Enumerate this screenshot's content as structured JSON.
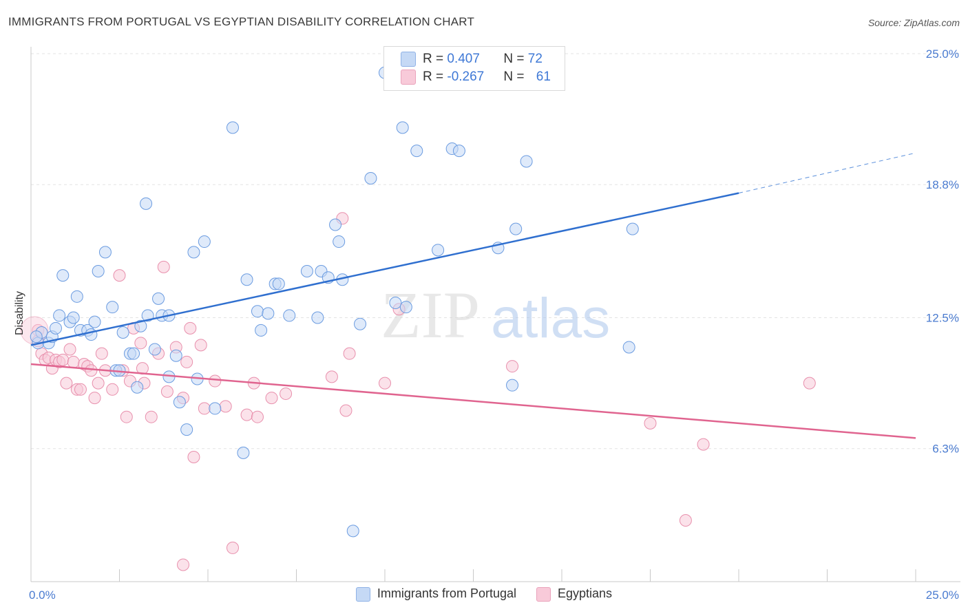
{
  "title": "IMMIGRANTS FROM PORTUGAL VS EGYPTIAN DISABILITY CORRELATION CHART",
  "source": "Source: ZipAtlas.com",
  "watermark": {
    "zip": "ZIP",
    "atlas": "atlas"
  },
  "legend_top": {
    "rows": [
      {
        "r_label": "R = ",
        "r_value": "0.407",
        "n_label": "N = ",
        "n_value": "72",
        "color": "#a8c6f0"
      },
      {
        "r_label": "R = ",
        "r_value": "-0.267",
        "n_label": "N = ",
        "n_value": "61",
        "color": "#f5b8cc"
      }
    ]
  },
  "legend_bottom": [
    {
      "label": "Immigrants from Portugal",
      "color": "#a8c6f0"
    },
    {
      "label": "Egyptians",
      "color": "#f5b8cc"
    }
  ],
  "chart_data": {
    "type": "scatter",
    "title": "IMMIGRANTS FROM PORTUGAL VS EGYPTIAN DISABILITY CORRELATION CHART",
    "xlabel": "",
    "ylabel": "Disability",
    "xlim": [
      0,
      25
    ],
    "ylim": [
      0,
      25
    ],
    "x_tick_labels": [
      "0.0%",
      "25.0%"
    ],
    "y_ticks": [
      6.3,
      12.5,
      18.8,
      25.0
    ],
    "y_tick_labels": [
      "6.3%",
      "12.5%",
      "18.8%",
      "25.0%"
    ],
    "grid": true,
    "legend_position": "top-center",
    "series": [
      {
        "name": "Immigrants from Portugal",
        "color": "#6a9be0",
        "fill": "#c5d9f5",
        "trend": {
          "x0": 0,
          "y0": 11.2,
          "x1": 20,
          "y1": 18.4,
          "dash_to_x": 25,
          "dash_to_y": 20.3
        },
        "points": [
          [
            0.2,
            11.3
          ],
          [
            0.3,
            11.8
          ],
          [
            0.5,
            11.3
          ],
          [
            0.6,
            11.6
          ],
          [
            0.7,
            12.0
          ],
          [
            0.8,
            12.6
          ],
          [
            0.9,
            14.5
          ],
          [
            1.1,
            12.3
          ],
          [
            1.2,
            12.5
          ],
          [
            1.3,
            13.5
          ],
          [
            1.4,
            11.9
          ],
          [
            1.6,
            11.9
          ],
          [
            1.7,
            11.7
          ],
          [
            1.8,
            12.3
          ],
          [
            1.9,
            14.7
          ],
          [
            2.1,
            15.6
          ],
          [
            2.3,
            13.0
          ],
          [
            2.4,
            10.0
          ],
          [
            2.5,
            10.0
          ],
          [
            2.6,
            11.8
          ],
          [
            2.8,
            10.8
          ],
          [
            2.9,
            10.8
          ],
          [
            3.0,
            9.2
          ],
          [
            3.1,
            12.1
          ],
          [
            3.25,
            17.9
          ],
          [
            3.3,
            12.6
          ],
          [
            3.5,
            11.0
          ],
          [
            3.6,
            13.4
          ],
          [
            3.7,
            12.6
          ],
          [
            3.9,
            12.6
          ],
          [
            3.9,
            9.7
          ],
          [
            4.1,
            10.7
          ],
          [
            4.2,
            8.5
          ],
          [
            4.4,
            7.2
          ],
          [
            4.6,
            15.6
          ],
          [
            4.7,
            9.6
          ],
          [
            4.9,
            16.1
          ],
          [
            5.2,
            8.2
          ],
          [
            5.7,
            21.5
          ],
          [
            6.0,
            6.1
          ],
          [
            6.1,
            14.3
          ],
          [
            6.4,
            12.8
          ],
          [
            6.5,
            11.9
          ],
          [
            6.7,
            12.7
          ],
          [
            6.9,
            14.1
          ],
          [
            7.0,
            14.1
          ],
          [
            7.3,
            12.6
          ],
          [
            7.8,
            14.7
          ],
          [
            8.1,
            12.5
          ],
          [
            8.2,
            14.7
          ],
          [
            8.4,
            14.4
          ],
          [
            8.6,
            16.9
          ],
          [
            8.7,
            16.1
          ],
          [
            8.8,
            14.3
          ],
          [
            9.1,
            2.4
          ],
          [
            9.3,
            12.2
          ],
          [
            9.6,
            19.1
          ],
          [
            10.0,
            24.1
          ],
          [
            10.3,
            13.2
          ],
          [
            10.5,
            21.5
          ],
          [
            10.6,
            13.0
          ],
          [
            10.9,
            20.4
          ],
          [
            11.5,
            15.7
          ],
          [
            11.9,
            20.5
          ],
          [
            12.1,
            20.4
          ],
          [
            13.2,
            15.8
          ],
          [
            13.6,
            9.3
          ],
          [
            13.7,
            16.7
          ],
          [
            14.0,
            19.9
          ],
          [
            16.9,
            11.1
          ],
          [
            17.0,
            16.7
          ],
          [
            0.15,
            11.6
          ]
        ]
      },
      {
        "name": "Egyptians",
        "color": "#e88fac",
        "fill": "#f8cad9",
        "trend": {
          "x0": 0,
          "y0": 10.3,
          "x1": 25,
          "y1": 6.8
        },
        "points": [
          [
            0.2,
            11.4
          ],
          [
            0.3,
            10.8
          ],
          [
            0.4,
            10.5
          ],
          [
            0.5,
            10.6
          ],
          [
            0.6,
            10.1
          ],
          [
            0.7,
            10.5
          ],
          [
            0.8,
            10.4
          ],
          [
            0.9,
            10.5
          ],
          [
            1.0,
            9.4
          ],
          [
            1.1,
            11.0
          ],
          [
            1.2,
            10.4
          ],
          [
            1.3,
            9.1
          ],
          [
            1.4,
            9.1
          ],
          [
            1.5,
            10.3
          ],
          [
            1.6,
            10.2
          ],
          [
            1.7,
            10.0
          ],
          [
            1.8,
            8.7
          ],
          [
            1.9,
            9.4
          ],
          [
            2.0,
            10.8
          ],
          [
            2.1,
            10.0
          ],
          [
            2.3,
            9.1
          ],
          [
            2.5,
            14.5
          ],
          [
            2.6,
            10.0
          ],
          [
            2.7,
            7.8
          ],
          [
            2.8,
            9.5
          ],
          [
            2.9,
            12.0
          ],
          [
            3.1,
            11.3
          ],
          [
            3.15,
            10.1
          ],
          [
            3.2,
            9.4
          ],
          [
            3.4,
            7.8
          ],
          [
            3.6,
            10.8
          ],
          [
            3.75,
            14.9
          ],
          [
            3.85,
            9.0
          ],
          [
            4.1,
            11.1
          ],
          [
            4.3,
            8.7
          ],
          [
            4.4,
            10.4
          ],
          [
            4.5,
            12.0
          ],
          [
            4.6,
            5.9
          ],
          [
            4.8,
            11.2
          ],
          [
            4.9,
            8.2
          ],
          [
            5.2,
            9.5
          ],
          [
            5.5,
            8.3
          ],
          [
            5.7,
            1.6
          ],
          [
            6.1,
            7.9
          ],
          [
            6.3,
            9.4
          ],
          [
            6.4,
            7.8
          ],
          [
            6.8,
            8.7
          ],
          [
            7.2,
            8.9
          ],
          [
            8.5,
            9.7
          ],
          [
            8.8,
            17.2
          ],
          [
            8.9,
            8.1
          ],
          [
            9.0,
            10.8
          ],
          [
            10.0,
            9.4
          ],
          [
            10.4,
            12.9
          ],
          [
            13.6,
            10.2
          ],
          [
            17.5,
            7.5
          ],
          [
            18.5,
            2.9
          ],
          [
            19.0,
            6.5
          ],
          [
            22.0,
            9.4
          ],
          [
            4.3,
            0.8
          ],
          [
            0.2,
            11.9
          ]
        ]
      }
    ]
  }
}
